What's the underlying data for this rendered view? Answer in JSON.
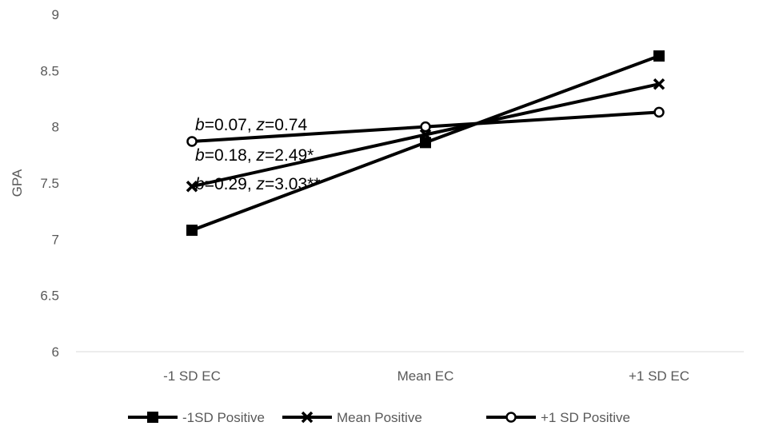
{
  "chart_data": {
    "type": "line",
    "categories": [
      "-1 SD EC",
      "Mean EC",
      "+1 SD EC"
    ],
    "series": [
      {
        "name": "-1SD Positive",
        "marker": "square",
        "values": [
          7.08,
          7.86,
          8.63
        ]
      },
      {
        "name": "Mean Positive",
        "marker": "x",
        "values": [
          7.47,
          7.93,
          8.38
        ]
      },
      {
        "name": "+1 SD Positive",
        "marker": "circle",
        "values": [
          7.87,
          8.0,
          8.13
        ]
      }
    ],
    "ylabel": "GPA",
    "xlabel": "",
    "ylim": [
      6,
      9
    ],
    "yticks": [
      "6",
      "6.5",
      "7",
      "7.5",
      "8",
      "8.5",
      "9"
    ],
    "grid": false,
    "legend_position": "bottom",
    "annotations": [
      {
        "b_label": "b",
        "b_value": "=0.07, ",
        "z_label": "z",
        "z_value": "=0.74"
      },
      {
        "b_label": "b",
        "b_value": "=0.18, ",
        "z_label": "z",
        "z_value": "=2.49*"
      },
      {
        "b_label": "b",
        "b_value": "=0.29, ",
        "z_label": "z",
        "z_value": "=3.03**"
      }
    ],
    "colors": {
      "line": "#000000",
      "axis": "#d9d9d9",
      "text": "#595959"
    }
  }
}
